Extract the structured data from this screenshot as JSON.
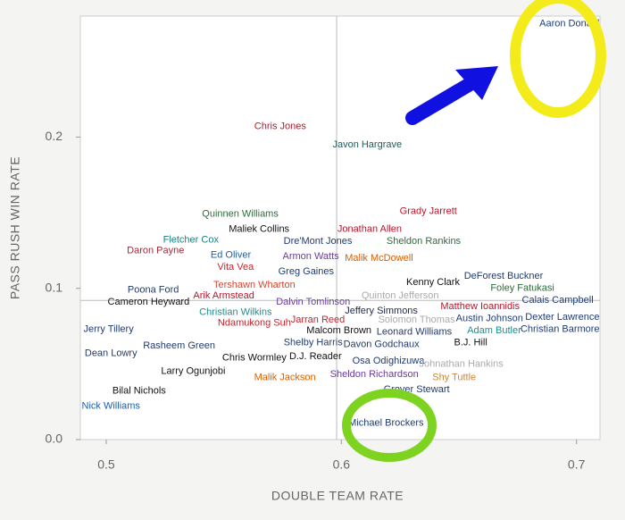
{
  "chart_data": {
    "type": "scatter",
    "x_label": "DOUBLE TEAM RATE",
    "y_label": "PASS RUSH WIN RATE",
    "xlim": [
      0.489,
      0.71
    ],
    "ylim": [
      0,
      0.28
    ],
    "xticks": [
      0.5,
      0.6,
      0.7
    ],
    "yticks": [
      {
        "value": 0,
        "label": "0.0"
      },
      0.1,
      0.2
    ],
    "vline": 0.598,
    "hline": 0.092,
    "labels": [
      "Aaron Donald",
      "Chris Jones",
      "Javon Hargrave",
      "Grady Jarrett",
      "Quinnen Williams",
      "Maliek Collins",
      "Jonathan Allen",
      "Fletcher Cox",
      "Dre'Mont Jones",
      "Sheldon Rankins",
      "Daron Payne",
      "Ed Oliver",
      "Armon Watts",
      "Malik McDowell",
      "Vita Vea",
      "Greg Gaines",
      "DeForest Buckner",
      "Tershawn Wharton",
      "Kenny Clark",
      "Foley Fatukasi",
      "Poona Ford",
      "Arik Armstead",
      "Quinton Jefferson",
      "Cameron Heyward",
      "Dalvin Tomlinson",
      "Calais Campbell",
      "Matthew Ioannidis",
      "Christian Wilkins",
      "Jeffery Simmons",
      "Dexter Lawrence",
      "Austin Johnson",
      "Ndamukong Suh",
      "Jarran Reed",
      "Solomon Thomas",
      "Jerry Tillery",
      "Malcom Brown",
      "Leonard Williams",
      "Adam Butler",
      "Christian Barmore",
      "Rasheem Green",
      "Shelby Harris",
      "Davon Godchaux",
      "B.J. Hill",
      "Dean Lowry",
      "Chris Wormley",
      "D.J. Reader",
      "Osa Odighizuwa",
      "Johnathan Hankins",
      "Larry Ogunjobi",
      "Malik Jackson",
      "Sheldon Richardson",
      "Shy Tuttle",
      "Grover Stewart",
      "Bilal Nichols",
      "Nick Williams",
      "Michael Brockers"
    ],
    "x": [
      0.697,
      0.574,
      0.611,
      0.637,
      0.557,
      0.565,
      0.612,
      0.536,
      0.59,
      0.635,
      0.521,
      0.553,
      0.587,
      0.616,
      0.555,
      0.585,
      0.669,
      0.563,
      0.639,
      0.677,
      0.52,
      0.55,
      0.625,
      0.518,
      0.588,
      0.692,
      0.659,
      0.555,
      0.617,
      0.694,
      0.663,
      0.563,
      0.59,
      0.632,
      0.501,
      0.599,
      0.631,
      0.665,
      0.693,
      0.531,
      0.588,
      0.617,
      0.655,
      0.502,
      0.563,
      0.589,
      0.62,
      0.651,
      0.537,
      0.576,
      0.614,
      0.648,
      0.632,
      0.514,
      0.502,
      0.619
    ],
    "values": [
      0.275,
      0.207,
      0.195,
      0.151,
      0.149,
      0.139,
      0.139,
      0.132,
      0.131,
      0.131,
      0.125,
      0.122,
      0.121,
      0.12,
      0.114,
      0.111,
      0.108,
      0.102,
      0.104,
      0.1,
      0.099,
      0.095,
      0.095,
      0.091,
      0.091,
      0.092,
      0.088,
      0.084,
      0.085,
      0.081,
      0.08,
      0.077,
      0.079,
      0.079,
      0.073,
      0.072,
      0.071,
      0.072,
      0.073,
      0.062,
      0.064,
      0.063,
      0.064,
      0.057,
      0.054,
      0.055,
      0.052,
      0.05,
      0.045,
      0.041,
      0.043,
      0.041,
      0.033,
      0.032,
      0.022,
      0.011
    ],
    "colors": [
      "#1f3b73",
      "#b2182b",
      "#1d5c5c",
      "#b2182b",
      "#2e6b3a",
      "#111111",
      "#b2182b",
      "#1a7f7f",
      "#1f3b73",
      "#2e6b3a",
      "#a32a3a",
      "#1f5fa8",
      "#6a3d9a",
      "#d95f02",
      "#c0262d",
      "#1f3b73",
      "#1f3b73",
      "#d9452b",
      "#111111",
      "#2e6b3a",
      "#1f3b73",
      "#b2182b",
      "#aaaaaa",
      "#111111",
      "#6a3d9a",
      "#1f3b73",
      "#b2182b",
      "#1a8f8f",
      "#1f2b4a",
      "#1f3b73",
      "#1f3b73",
      "#c0262d",
      "#c0262d",
      "#aaaaaa",
      "#1f3b73",
      "#111111",
      "#1f3b73",
      "#1a8f8f",
      "#1f3b73",
      "#1f3b73",
      "#1f3b73",
      "#1f3b73",
      "#111111",
      "#1f3b73",
      "#111111",
      "#111111",
      "#1f3b73",
      "#aaaaaa",
      "#111111",
      "#d95f02",
      "#6a3d9a",
      "#c8873a",
      "#1f3b73",
      "#111111",
      "#1f5fa8",
      "#1f3b73"
    ]
  }
}
